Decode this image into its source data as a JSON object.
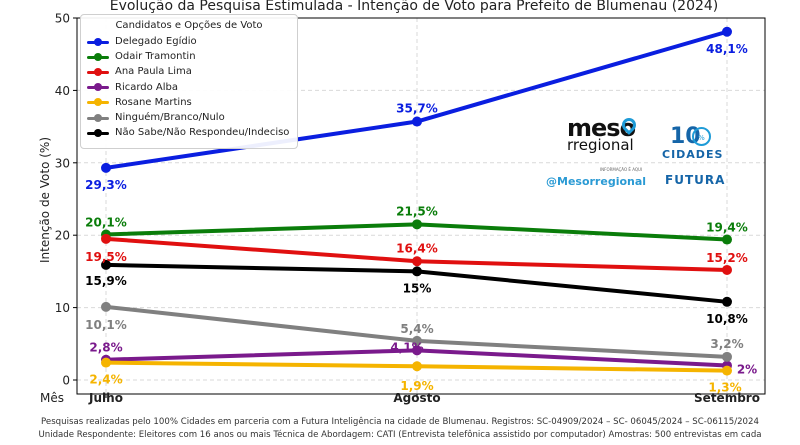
{
  "chart_data": {
    "type": "line",
    "title": "Evolução da Pesquisa Estimulada - Intenção de Voto para Prefeito de Blumenau (2024)",
    "xlabel": "Mês",
    "ylabel": "Intenção de Voto (%)",
    "categories": [
      "Julho",
      "Agosto",
      "Setembro"
    ],
    "ylim": [
      0,
      50
    ],
    "yticks": [
      0,
      10,
      20,
      30,
      40,
      50
    ],
    "grid": true,
    "legend_title": "Candidatos e Opções de Voto",
    "legend_position": "top-left",
    "series": [
      {
        "name": "Delegado Egídio",
        "color": "#0a1ee0",
        "values": [
          29.3,
          35.7,
          48.1
        ],
        "labels": [
          "29,3%",
          "35,7%",
          "48,1%"
        ]
      },
      {
        "name": "Odair Tramontin",
        "color": "#0a7d0a",
        "values": [
          20.1,
          21.5,
          19.4
        ],
        "labels": [
          "20,1%",
          "21,5%",
          "19,4%"
        ]
      },
      {
        "name": "Ana Paula Lima",
        "color": "#e01010",
        "values": [
          19.5,
          16.4,
          15.2
        ],
        "labels": [
          "19,5%",
          "16,4%",
          "15,2%"
        ]
      },
      {
        "name": "Ricardo Alba",
        "color": "#7a1a8c",
        "values": [
          2.8,
          4.1,
          2.0
        ],
        "labels": [
          "2,8%",
          "4,1%",
          "2%"
        ]
      },
      {
        "name": "Rosane Martins",
        "color": "#f5b400",
        "values": [
          2.4,
          1.9,
          1.3
        ],
        "labels": [
          "2,4%",
          "1,9%",
          "1,3%"
        ]
      },
      {
        "name": "Ninguém/Branco/Nulo",
        "color": "#808080",
        "values": [
          10.1,
          5.4,
          3.2
        ],
        "labels": [
          "10,1%",
          "5,4%",
          "3,2%"
        ]
      },
      {
        "name": "Não Sabe/Não Respondeu/Indeciso",
        "color": "#000000",
        "values": [
          15.9,
          15.0,
          10.8
        ],
        "labels": [
          "15,9%",
          "15%",
          "10,8%"
        ]
      }
    ]
  },
  "logos": {
    "meso": "meso",
    "regional": "rregional",
    "tagline": "INFORMAÇÃO É AQUI",
    "handle": "@Mesorregional",
    "cem": "10",
    "cem_ring": "%",
    "cidades": "CIDADES",
    "futura": "FUTURA"
  },
  "footer": {
    "line1": "Pesquisas  realizadas pelo 100% Cidades em parceria com a Futura Inteligência na cidade de Blumenau.  Registros: SC-04909/2024  – SC- 06045/2024 – SC-06115/2024",
    "line2": "Unidade Respondente: Eleitores com 16 anos ou mais Técnica de Abordagem: CATI (Entrevista telefônica assistido por computador) Amostras: 500 entrevistas em cada"
  }
}
